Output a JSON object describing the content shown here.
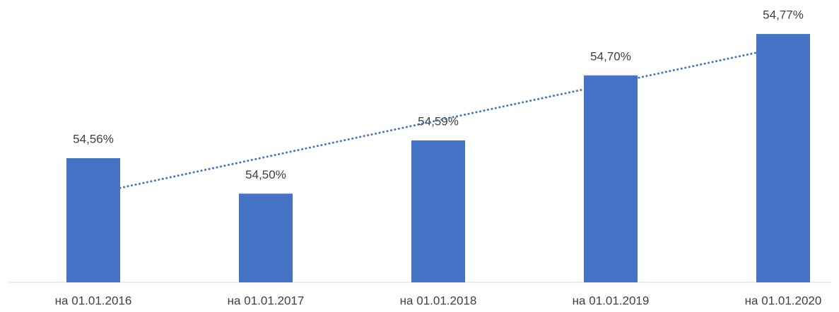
{
  "chart_data": {
    "type": "bar",
    "categories": [
      "на 01.01.2016",
      "на 01.01.2017",
      "на 01.01.2018",
      "на 01.01.2019",
      "на 01.01.2020"
    ],
    "values": [
      54.56,
      54.5,
      54.59,
      54.7,
      54.77
    ],
    "value_labels": [
      "54,56%",
      "54,50%",
      "54,59%",
      "54,70%",
      "54,77%"
    ],
    "color": "#4472c4",
    "ylim": [
      54.35,
      54.8
    ],
    "trendline": "linear"
  }
}
